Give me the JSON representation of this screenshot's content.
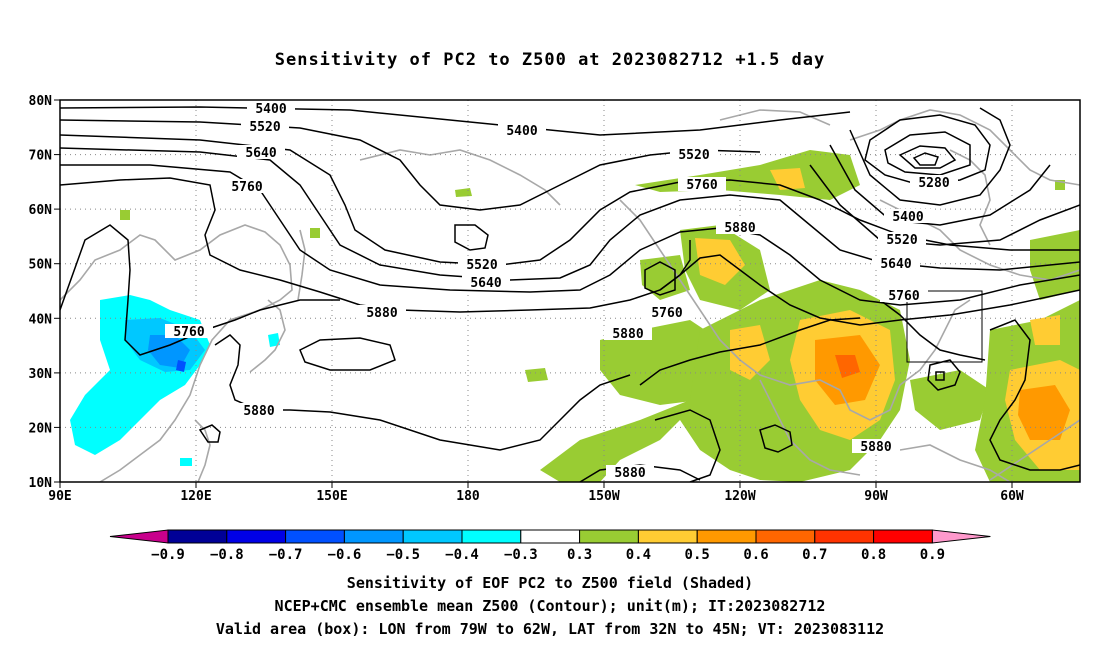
{
  "title": "Sensitivity of PC2 to Z500 at 2023082712 +1.5 day",
  "lat_labels": [
    "80N",
    "70N",
    "60N",
    "50N",
    "40N",
    "30N",
    "20N",
    "10N"
  ],
  "lon_labels": [
    "90E",
    "120E",
    "150E",
    "180",
    "150W",
    "120W",
    "90W",
    "60W"
  ],
  "contour_labels": [
    {
      "text": "5400"
    },
    {
      "text": "5520"
    },
    {
      "text": "5640"
    },
    {
      "text": "5760"
    },
    {
      "text": "5400"
    },
    {
      "text": "5520"
    },
    {
      "text": "5760"
    },
    {
      "text": "5880"
    },
    {
      "text": "5280"
    },
    {
      "text": "5400"
    },
    {
      "text": "5520"
    },
    {
      "text": "5640"
    },
    {
      "text": "5760"
    },
    {
      "text": "5520"
    },
    {
      "text": "5640"
    },
    {
      "text": "5760"
    },
    {
      "text": "5880"
    },
    {
      "text": "5880"
    },
    {
      "text": "5880"
    },
    {
      "text": "5760"
    },
    {
      "text": "5880"
    },
    {
      "text": "5880"
    }
  ],
  "colorbar": {
    "labels": [
      "−0.9",
      "−0.8",
      "−0.7",
      "−0.6",
      "−0.5",
      "−0.4",
      "−0.3",
      "0.3",
      "0.4",
      "0.5",
      "0.6",
      "0.7",
      "0.8",
      "0.9"
    ],
    "colors": [
      "#c8008c",
      "#000096",
      "#0000e6",
      "#0050ff",
      "#0096ff",
      "#00c8ff",
      "#00ffff",
      "#ffffff",
      "#99cc33",
      "#ffcc33",
      "#ff9900",
      "#ff6600",
      "#ff3300",
      "#ff0000",
      "#ff99cc"
    ]
  },
  "footer": {
    "line1": "Sensitivity of EOF PC2 to Z500 field (Shaded)",
    "line2": "NCEP+CMC ensemble mean Z500 (Contour); unit(m); IT:2023082712",
    "line3": "Valid area (box): LON from 79W to 62W, LAT from 32N to 45N; VT: 2023083112"
  }
}
